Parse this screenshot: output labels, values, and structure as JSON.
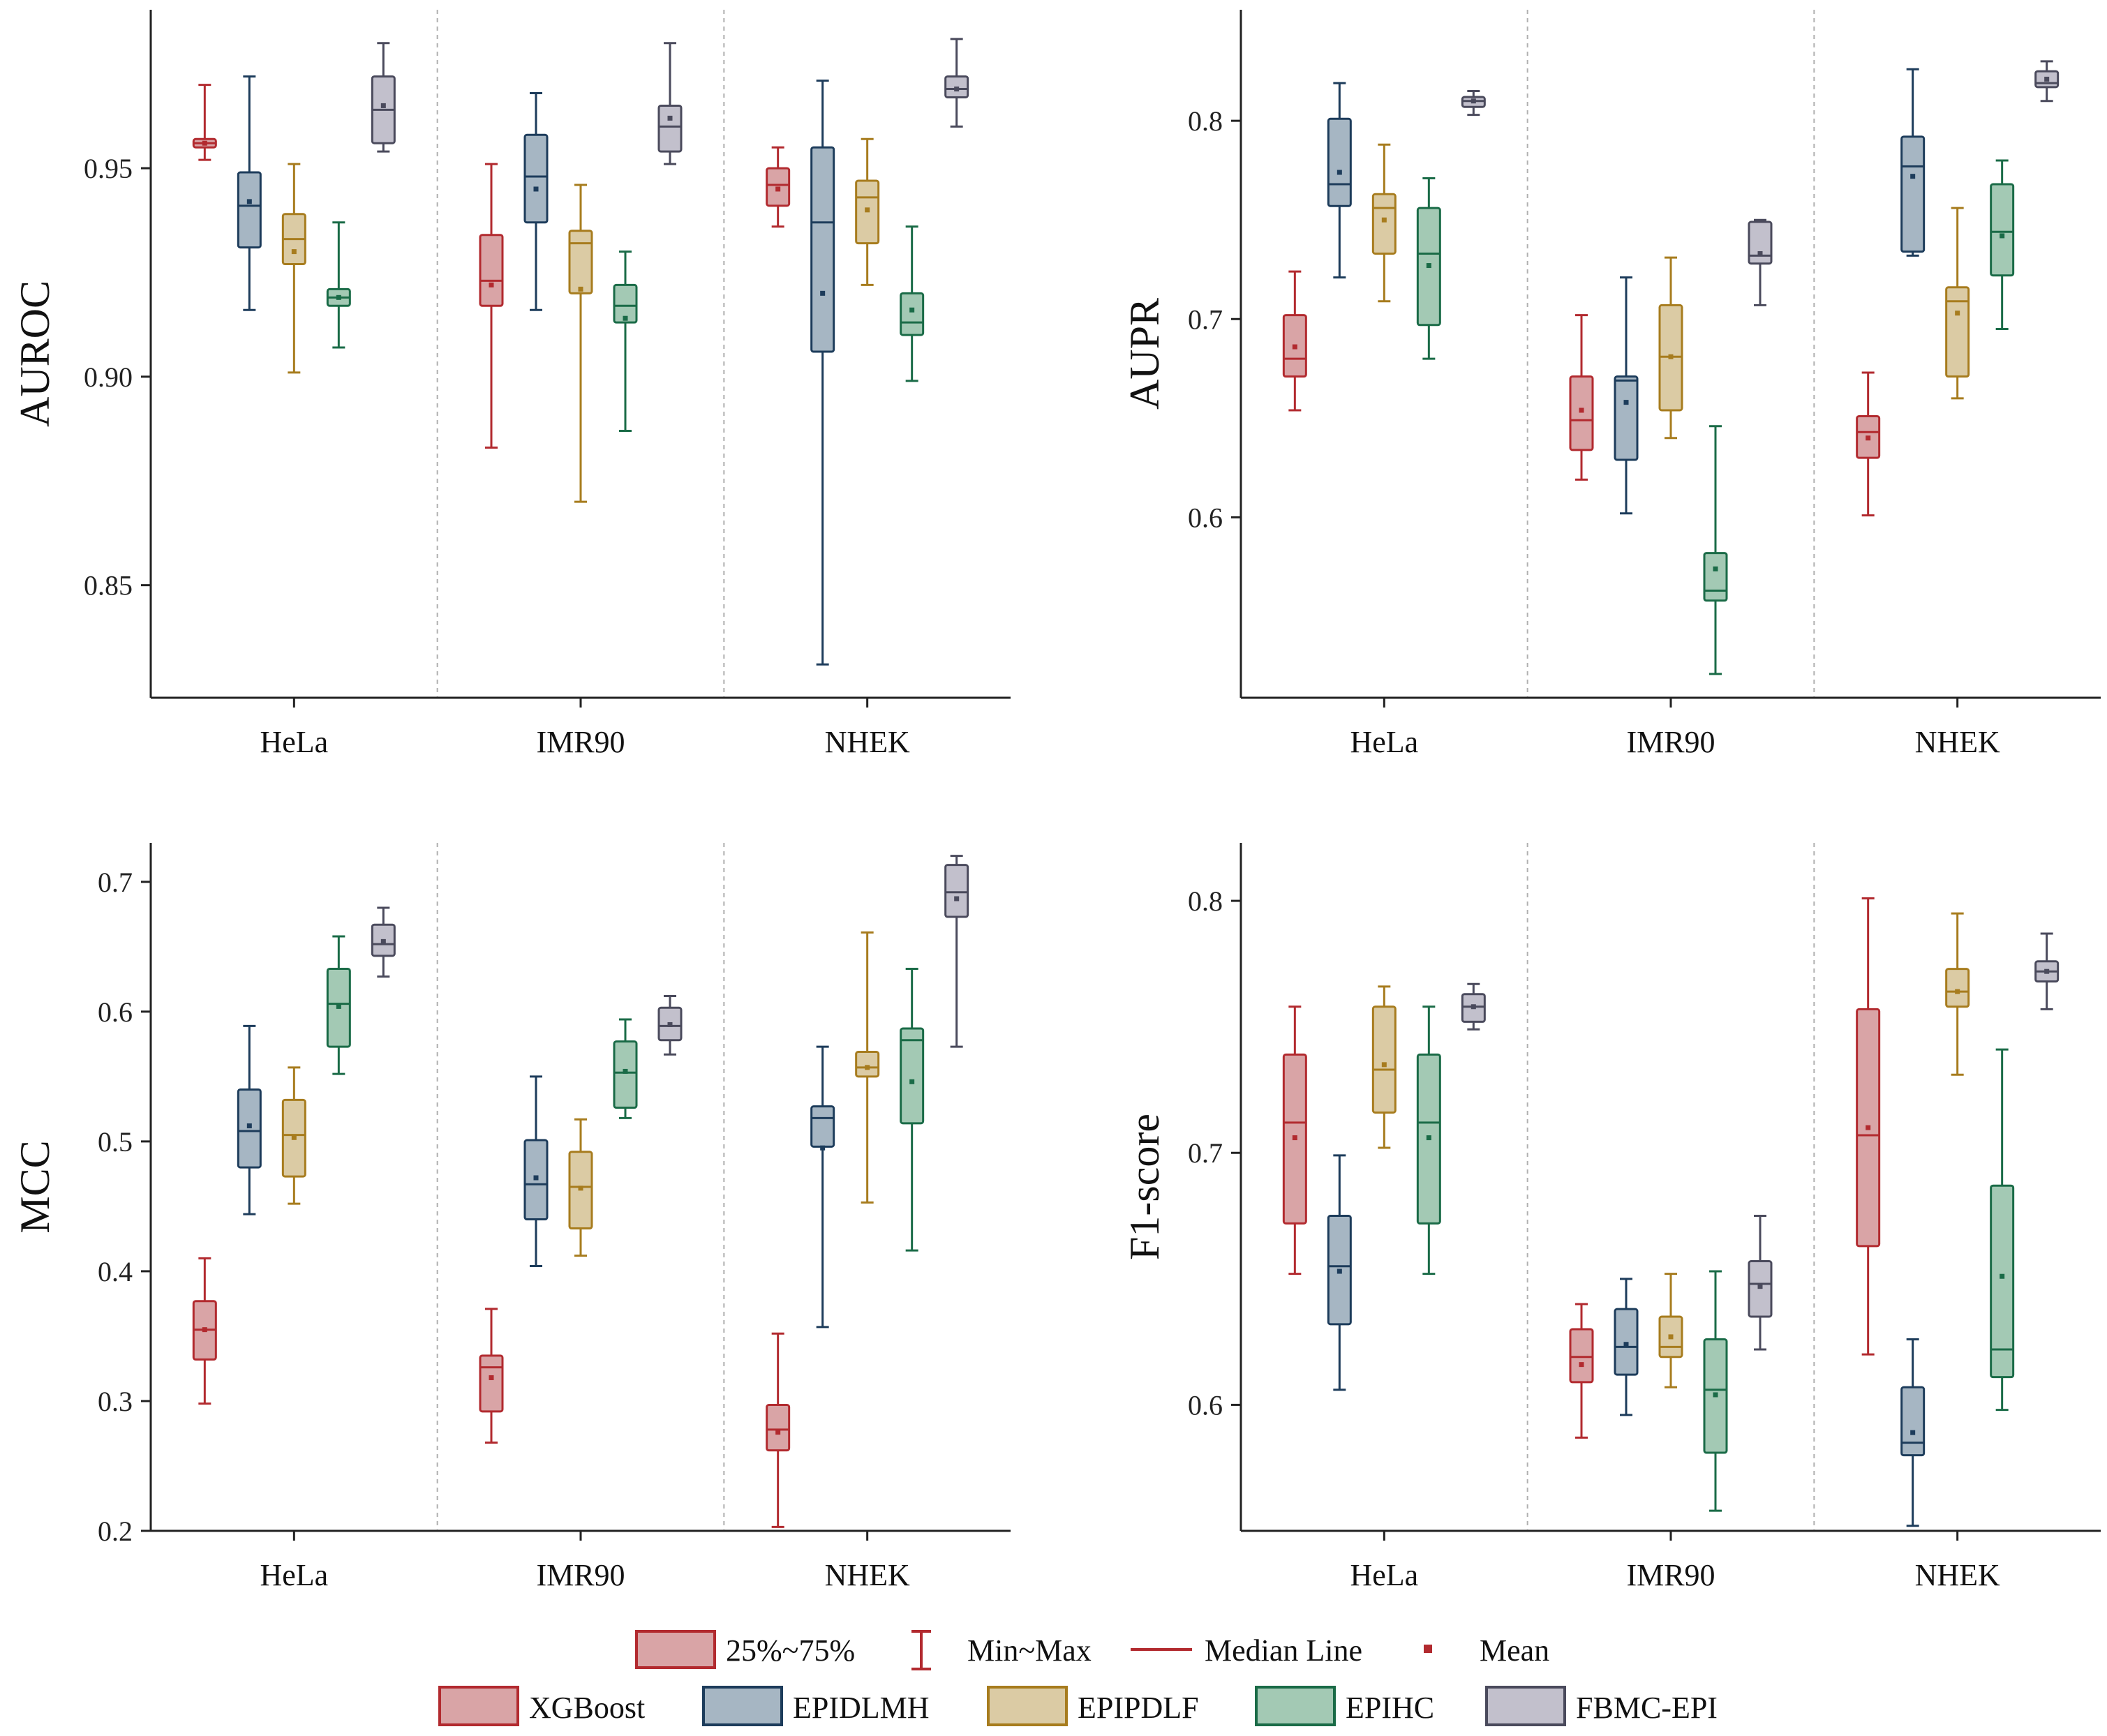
{
  "colors": {
    "XGBoost": {
      "stroke": "#b22a2f",
      "fill": "#d9a4a6"
    },
    "EPIDLMH": {
      "stroke": "#1d3c5b",
      "fill": "#a6b6c3"
    },
    "EPIPDLF": {
      "stroke": "#a77c1e",
      "fill": "#dbcba4"
    },
    "EPIHC": {
      "stroke": "#1a6b47",
      "fill": "#a3c9b4"
    },
    "FBMC-EPI": {
      "stroke": "#4a4a5c",
      "fill": "#c2c0cc"
    },
    "axis": "#222222",
    "separator": "#b0b0b0"
  },
  "legend": {
    "stats_items": [
      {
        "key": "box",
        "label": "25%~75%"
      },
      {
        "key": "whisker",
        "label": "Min~Max"
      },
      {
        "key": "median",
        "label": "Median Line"
      },
      {
        "key": "mean",
        "label": "Mean"
      }
    ],
    "models": [
      "XGBoost",
      "EPIDLMH",
      "EPIPDLF",
      "EPIHC",
      "FBMC-EPI"
    ]
  },
  "chart_data": [
    {
      "type": "box",
      "title": "",
      "ylabel": "AUROC",
      "ylim": [
        0.823,
        0.988
      ],
      "yticks": [
        "0.85",
        "0.90",
        "0.95"
      ],
      "categories": [
        "HeLa",
        "IMR90",
        "NHEK"
      ],
      "series": [
        {
          "name": "XGBoost",
          "boxes": [
            {
              "min": 0.952,
              "q1": 0.955,
              "median": 0.956,
              "q3": 0.957,
              "max": 0.97,
              "mean": 0.956
            },
            {
              "min": 0.883,
              "q1": 0.917,
              "median": 0.923,
              "q3": 0.934,
              "max": 0.951,
              "mean": 0.922
            },
            {
              "min": 0.936,
              "q1": 0.941,
              "median": 0.946,
              "q3": 0.95,
              "max": 0.955,
              "mean": 0.945
            }
          ]
        },
        {
          "name": "EPIDLMH",
          "boxes": [
            {
              "min": 0.916,
              "q1": 0.931,
              "median": 0.941,
              "q3": 0.949,
              "max": 0.972,
              "mean": 0.942
            },
            {
              "min": 0.916,
              "q1": 0.937,
              "median": 0.948,
              "q3": 0.958,
              "max": 0.968,
              "mean": 0.945
            },
            {
              "min": 0.831,
              "q1": 0.906,
              "median": 0.937,
              "q3": 0.955,
              "max": 0.971,
              "mean": 0.92
            }
          ]
        },
        {
          "name": "EPIPDLF",
          "boxes": [
            {
              "min": 0.901,
              "q1": 0.927,
              "median": 0.933,
              "q3": 0.939,
              "max": 0.951,
              "mean": 0.93
            },
            {
              "min": 0.87,
              "q1": 0.92,
              "median": 0.932,
              "q3": 0.935,
              "max": 0.946,
              "mean": 0.921
            },
            {
              "min": 0.922,
              "q1": 0.932,
              "median": 0.943,
              "q3": 0.947,
              "max": 0.957,
              "mean": 0.94
            }
          ]
        },
        {
          "name": "EPIHC",
          "boxes": [
            {
              "min": 0.907,
              "q1": 0.917,
              "median": 0.919,
              "q3": 0.921,
              "max": 0.937,
              "mean": 0.919
            },
            {
              "min": 0.887,
              "q1": 0.913,
              "median": 0.917,
              "q3": 0.922,
              "max": 0.93,
              "mean": 0.914
            },
            {
              "min": 0.899,
              "q1": 0.91,
              "median": 0.913,
              "q3": 0.92,
              "max": 0.936,
              "mean": 0.916
            }
          ]
        },
        {
          "name": "FBMC-EPI",
          "boxes": [
            {
              "min": 0.954,
              "q1": 0.956,
              "median": 0.964,
              "q3": 0.972,
              "max": 0.98,
              "mean": 0.965
            },
            {
              "min": 0.951,
              "q1": 0.954,
              "median": 0.96,
              "q3": 0.965,
              "max": 0.98,
              "mean": 0.962
            },
            {
              "min": 0.96,
              "q1": 0.967,
              "median": 0.969,
              "q3": 0.972,
              "max": 0.981,
              "mean": 0.969
            }
          ]
        }
      ]
    },
    {
      "type": "box",
      "title": "",
      "ylabel": "AUPR",
      "ylim": [
        0.509,
        0.856
      ],
      "yticks": [
        "0.6",
        "0.7",
        "0.8"
      ],
      "categories": [
        "HeLa",
        "IMR90",
        "NHEK"
      ],
      "series": [
        {
          "name": "XGBoost",
          "boxes": [
            {
              "min": 0.654,
              "q1": 0.671,
              "median": 0.68,
              "q3": 0.702,
              "max": 0.724,
              "mean": 0.686
            },
            {
              "min": 0.619,
              "q1": 0.634,
              "median": 0.649,
              "q3": 0.671,
              "max": 0.702,
              "mean": 0.654
            },
            {
              "min": 0.601,
              "q1": 0.63,
              "median": 0.643,
              "q3": 0.651,
              "max": 0.673,
              "mean": 0.64
            }
          ]
        },
        {
          "name": "EPIDLMH",
          "boxes": [
            {
              "min": 0.721,
              "q1": 0.757,
              "median": 0.768,
              "q3": 0.801,
              "max": 0.819,
              "mean": 0.774
            },
            {
              "min": 0.602,
              "q1": 0.629,
              "median": 0.669,
              "q3": 0.671,
              "max": 0.721,
              "mean": 0.658
            },
            {
              "min": 0.732,
              "q1": 0.734,
              "median": 0.777,
              "q3": 0.792,
              "max": 0.826,
              "mean": 0.772
            }
          ]
        },
        {
          "name": "EPIPDLF",
          "boxes": [
            {
              "min": 0.709,
              "q1": 0.733,
              "median": 0.756,
              "q3": 0.763,
              "max": 0.788,
              "mean": 0.75
            },
            {
              "min": 0.64,
              "q1": 0.654,
              "median": 0.681,
              "q3": 0.707,
              "max": 0.731,
              "mean": 0.681
            },
            {
              "min": 0.66,
              "q1": 0.671,
              "median": 0.709,
              "q3": 0.716,
              "max": 0.756,
              "mean": 0.703
            }
          ]
        },
        {
          "name": "EPIHC",
          "boxes": [
            {
              "min": 0.68,
              "q1": 0.697,
              "median": 0.733,
              "q3": 0.756,
              "max": 0.771,
              "mean": 0.727
            },
            {
              "min": 0.521,
              "q1": 0.558,
              "median": 0.563,
              "q3": 0.582,
              "max": 0.646,
              "mean": 0.574
            },
            {
              "min": 0.695,
              "q1": 0.722,
              "median": 0.744,
              "q3": 0.768,
              "max": 0.78,
              "mean": 0.742
            }
          ]
        },
        {
          "name": "FBMC-EPI",
          "boxes": [
            {
              "min": 0.803,
              "q1": 0.807,
              "median": 0.81,
              "q3": 0.812,
              "max": 0.815,
              "mean": 0.81
            },
            {
              "min": 0.707,
              "q1": 0.728,
              "median": 0.732,
              "q3": 0.749,
              "max": 0.75,
              "mean": 0.733
            },
            {
              "min": 0.81,
              "q1": 0.817,
              "median": 0.819,
              "q3": 0.825,
              "max": 0.83,
              "mean": 0.821
            }
          ]
        }
      ]
    },
    {
      "type": "box",
      "title": "",
      "ylabel": "MCC",
      "ylim": [
        0.2,
        0.73
      ],
      "yticks": [
        "0.2",
        "0.3",
        "0.4",
        "0.5",
        "0.6",
        "0.7"
      ],
      "categories": [
        "HeLa",
        "IMR90",
        "NHEK"
      ],
      "series": [
        {
          "name": "XGBoost",
          "boxes": [
            {
              "min": 0.298,
              "q1": 0.332,
              "median": 0.355,
              "q3": 0.377,
              "max": 0.41,
              "mean": 0.355
            },
            {
              "min": 0.268,
              "q1": 0.292,
              "median": 0.326,
              "q3": 0.335,
              "max": 0.371,
              "mean": 0.318
            },
            {
              "min": 0.203,
              "q1": 0.262,
              "median": 0.278,
              "q3": 0.297,
              "max": 0.352,
              "mean": 0.276
            }
          ]
        },
        {
          "name": "EPIDLMH",
          "boxes": [
            {
              "min": 0.444,
              "q1": 0.48,
              "median": 0.508,
              "q3": 0.54,
              "max": 0.589,
              "mean": 0.512
            },
            {
              "min": 0.404,
              "q1": 0.44,
              "median": 0.467,
              "q3": 0.501,
              "max": 0.55,
              "mean": 0.472
            },
            {
              "min": 0.357,
              "q1": 0.496,
              "median": 0.518,
              "q3": 0.527,
              "max": 0.573,
              "mean": 0.495
            }
          ]
        },
        {
          "name": "EPIPDLF",
          "boxes": [
            {
              "min": 0.452,
              "q1": 0.473,
              "median": 0.505,
              "q3": 0.532,
              "max": 0.557,
              "mean": 0.503
            },
            {
              "min": 0.412,
              "q1": 0.433,
              "median": 0.465,
              "q3": 0.492,
              "max": 0.517,
              "mean": 0.464
            },
            {
              "min": 0.453,
              "q1": 0.55,
              "median": 0.557,
              "q3": 0.569,
              "max": 0.661,
              "mean": 0.557
            }
          ]
        },
        {
          "name": "EPIHC",
          "boxes": [
            {
              "min": 0.552,
              "q1": 0.573,
              "median": 0.606,
              "q3": 0.633,
              "max": 0.658,
              "mean": 0.604
            },
            {
              "min": 0.518,
              "q1": 0.526,
              "median": 0.553,
              "q3": 0.577,
              "max": 0.594,
              "mean": 0.554
            },
            {
              "min": 0.416,
              "q1": 0.514,
              "median": 0.578,
              "q3": 0.587,
              "max": 0.633,
              "mean": 0.546
            }
          ]
        },
        {
          "name": "FBMC-EPI",
          "boxes": [
            {
              "min": 0.627,
              "q1": 0.643,
              "median": 0.652,
              "q3": 0.667,
              "max": 0.68,
              "mean": 0.654
            },
            {
              "min": 0.567,
              "q1": 0.578,
              "median": 0.589,
              "q3": 0.603,
              "max": 0.612,
              "mean": 0.59
            },
            {
              "min": 0.573,
              "q1": 0.673,
              "median": 0.692,
              "q3": 0.713,
              "max": 0.72,
              "mean": 0.687
            }
          ]
        }
      ]
    },
    {
      "type": "box",
      "title": "",
      "ylabel": "F1-score",
      "ylim": [
        0.55,
        0.823
      ],
      "yticks": [
        "0.6",
        "0.7",
        "0.8"
      ],
      "categories": [
        "HeLa",
        "IMR90",
        "NHEK"
      ],
      "series": [
        {
          "name": "XGBoost",
          "boxes": [
            {
              "min": 0.652,
              "q1": 0.672,
              "median": 0.712,
              "q3": 0.739,
              "max": 0.758,
              "mean": 0.706
            },
            {
              "min": 0.587,
              "q1": 0.609,
              "median": 0.619,
              "q3": 0.63,
              "max": 0.64,
              "mean": 0.616
            },
            {
              "min": 0.62,
              "q1": 0.663,
              "median": 0.707,
              "q3": 0.757,
              "max": 0.801,
              "mean": 0.71
            }
          ]
        },
        {
          "name": "EPIDLMH",
          "boxes": [
            {
              "min": 0.606,
              "q1": 0.632,
              "median": 0.655,
              "q3": 0.675,
              "max": 0.699,
              "mean": 0.653
            },
            {
              "min": 0.596,
              "q1": 0.612,
              "median": 0.623,
              "q3": 0.638,
              "max": 0.65,
              "mean": 0.624
            },
            {
              "min": 0.552,
              "q1": 0.58,
              "median": 0.585,
              "q3": 0.607,
              "max": 0.626,
              "mean": 0.589
            }
          ]
        },
        {
          "name": "EPIPDLF",
          "boxes": [
            {
              "min": 0.702,
              "q1": 0.716,
              "median": 0.733,
              "q3": 0.758,
              "max": 0.766,
              "mean": 0.735
            },
            {
              "min": 0.607,
              "q1": 0.619,
              "median": 0.623,
              "q3": 0.635,
              "max": 0.652,
              "mean": 0.627
            },
            {
              "min": 0.731,
              "q1": 0.758,
              "median": 0.764,
              "q3": 0.773,
              "max": 0.795,
              "mean": 0.764
            }
          ]
        },
        {
          "name": "EPIHC",
          "boxes": [
            {
              "min": 0.652,
              "q1": 0.672,
              "median": 0.712,
              "q3": 0.739,
              "max": 0.758,
              "mean": 0.706
            },
            {
              "min": 0.558,
              "q1": 0.581,
              "median": 0.606,
              "q3": 0.626,
              "max": 0.653,
              "mean": 0.604
            },
            {
              "min": 0.598,
              "q1": 0.611,
              "median": 0.622,
              "q3": 0.687,
              "max": 0.741,
              "mean": 0.651
            }
          ]
        },
        {
          "name": "FBMC-EPI",
          "boxes": [
            {
              "min": 0.749,
              "q1": 0.752,
              "median": 0.758,
              "q3": 0.763,
              "max": 0.767,
              "mean": 0.758
            },
            {
              "min": 0.622,
              "q1": 0.635,
              "median": 0.648,
              "q3": 0.657,
              "max": 0.675,
              "mean": 0.647
            },
            {
              "min": 0.757,
              "q1": 0.768,
              "median": 0.772,
              "q3": 0.776,
              "max": 0.787,
              "mean": 0.772
            }
          ]
        }
      ]
    }
  ]
}
